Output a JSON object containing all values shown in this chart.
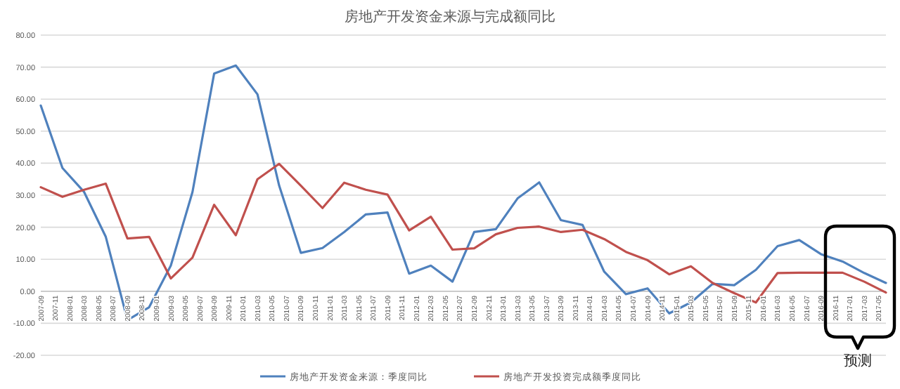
{
  "chart_data": {
    "type": "line",
    "title": "房地产开发资金来源与完成额同比",
    "x": [
      "2007-09",
      "2007-12",
      "2008-03",
      "2008-06",
      "2008-09",
      "2008-12",
      "2009-03",
      "2009-06",
      "2009-09",
      "2009-12",
      "2010-03",
      "2010-06",
      "2010-09",
      "2010-12",
      "2011-03",
      "2011-06",
      "2011-09",
      "2011-12",
      "2012-03",
      "2012-06",
      "2012-09",
      "2012-12",
      "2013-03",
      "2013-06",
      "2013-09",
      "2013-12",
      "2014-03",
      "2014-06",
      "2014-09",
      "2014-12",
      "2015-03",
      "2015-06",
      "2015-09",
      "2015-12",
      "2016-03",
      "2016-06",
      "2016-09",
      "2016-12",
      "2017-03",
      "2017-06"
    ],
    "series": [
      {
        "name": "房地产开发资金来源：季度同比",
        "color": "#4f81bd",
        "values": [
          58,
          38.5,
          31,
          17,
          -9,
          -5,
          8,
          31,
          68,
          70.5,
          61.5,
          33,
          12,
          13.5,
          18.5,
          24,
          24.6,
          5.5,
          8,
          3,
          18.5,
          19.4,
          29,
          34,
          22.2,
          20.7,
          6.1,
          -0.9,
          0.9,
          -6.9,
          -3.5,
          2.3,
          1.9,
          6.7,
          14.1,
          16,
          11.6,
          9.3,
          5.7,
          2.6
        ]
      },
      {
        "name": "房地产开发投资完成额季度同比",
        "color": "#c0504d",
        "values": [
          32.5,
          29.5,
          31.7,
          33.6,
          16.5,
          17,
          4,
          10.5,
          27,
          17.5,
          35,
          39.8,
          33,
          26,
          33.9,
          31.7,
          30.2,
          19,
          23.3,
          13,
          13.4,
          17.8,
          19.8,
          20.2,
          18.5,
          19.2,
          16.3,
          12.3,
          9.7,
          5.3,
          7.8,
          2.6,
          -0.6,
          -3.5,
          5.7,
          5.8,
          5.8,
          5.8,
          3,
          -0.4
        ]
      }
    ],
    "xlim": [
      "2007-09",
      "2017-06"
    ],
    "xticks": [
      "2007-09",
      "2007-11",
      "2008-01",
      "2008-03",
      "2008-05",
      "2008-07",
      "2008-09",
      "2008-11",
      "2009-01",
      "2009-03",
      "2009-05",
      "2009-07",
      "2009-09",
      "2009-11",
      "2010-01",
      "2010-03",
      "2010-05",
      "2010-07",
      "2010-09",
      "2010-11",
      "2011-01",
      "2011-03",
      "2011-05",
      "2011-07",
      "2011-09",
      "2011-11",
      "2012-01",
      "2012-03",
      "2012-05",
      "2012-07",
      "2012-09",
      "2012-11",
      "2013-01",
      "2013-03",
      "2013-05",
      "2013-07",
      "2013-09",
      "2013-11",
      "2014-01",
      "2014-03",
      "2014-05",
      "2014-07",
      "2014-09",
      "2014-11",
      "2015-01",
      "2015-03",
      "2015-05",
      "2015-07",
      "2015-09",
      "2015-11",
      "2016-01",
      "2016-03",
      "2016-05",
      "2016-07",
      "2016-09",
      "2016-11",
      "2017-01",
      "2017-03",
      "2017-05"
    ],
    "ylim": [
      -20,
      80
    ],
    "yticks": [
      {
        "value": -20,
        "label": "-20.00"
      },
      {
        "value": -10,
        "label": "-10.00"
      },
      {
        "value": 0,
        "label": "0.00"
      },
      {
        "value": 10,
        "label": "10.00"
      },
      {
        "value": 20,
        "label": "20.00"
      },
      {
        "value": 30,
        "label": "30.00"
      },
      {
        "value": 40,
        "label": "40.00"
      },
      {
        "value": 50,
        "label": "50.00"
      },
      {
        "value": 60,
        "label": "60.00"
      },
      {
        "value": 70,
        "label": "70.00"
      },
      {
        "value": 80,
        "label": "80.00"
      }
    ],
    "grid": "y",
    "legend": "bottom",
    "marker": "none",
    "line_style": "solid",
    "annotations": [
      "预测"
    ]
  }
}
